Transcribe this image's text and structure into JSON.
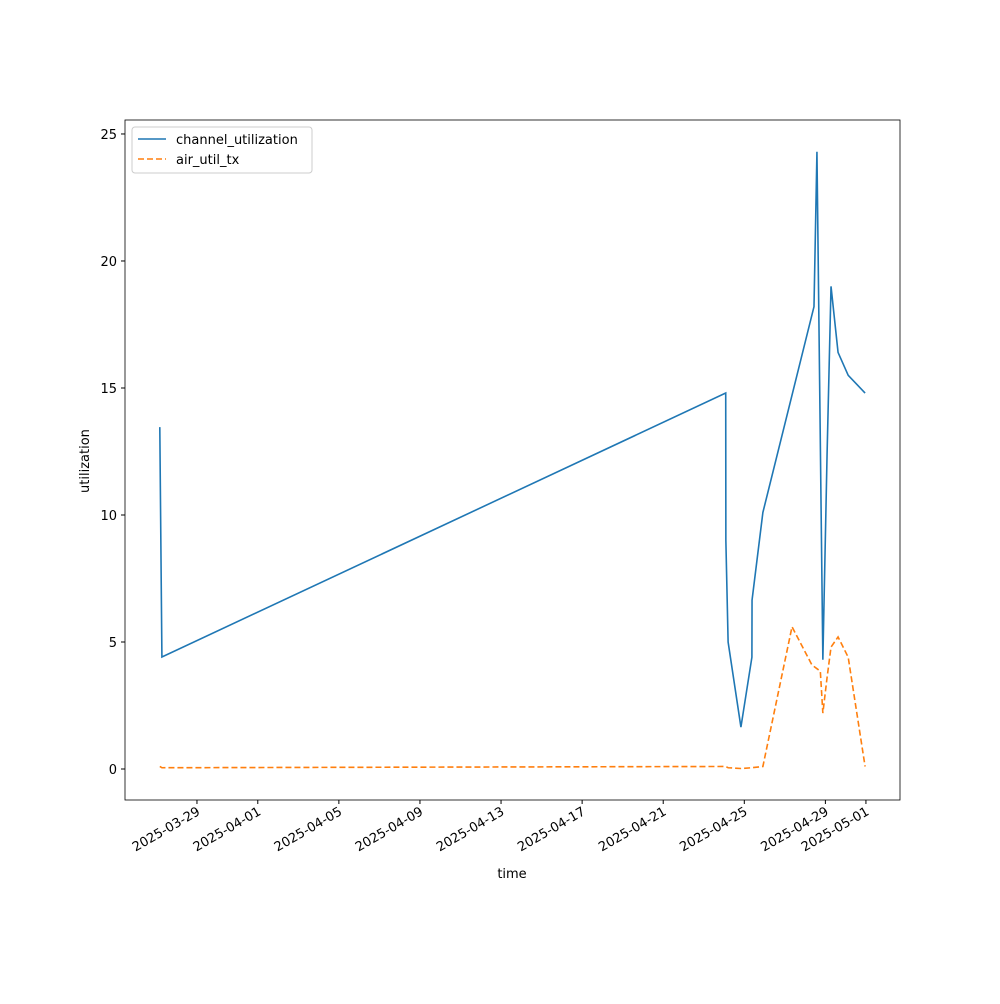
{
  "chart_data": {
    "type": "line",
    "xlabel": "time",
    "ylabel": "utilization",
    "xlim": [
      "2025-03-25T10:48",
      "2025-05-02T16:20"
    ],
    "ylim": [
      -1.22,
      25.55
    ],
    "xticks": [
      "2025-03-29",
      "2025-04-01",
      "2025-04-05",
      "2025-04-09",
      "2025-04-13",
      "2025-04-17",
      "2025-04-21",
      "2025-04-25",
      "2025-04-29",
      "2025-05-01"
    ],
    "yticks": [
      0,
      5,
      10,
      15,
      20,
      25
    ],
    "legend": "upper left",
    "series": [
      {
        "name": "channel_utilization",
        "color": "#1f77b4",
        "dash": "solid",
        "x": [
          "2025-03-27T04:00",
          "2025-03-27T06:30",
          "2025-04-24T02:00",
          "2025-04-24T02:10",
          "2025-04-24T04:50",
          "2025-04-24T20:00",
          "2025-04-25T09:00",
          "2025-04-25T09:10",
          "2025-04-25T22:00",
          "2025-04-28T10:30",
          "2025-04-28T14:00",
          "2025-04-28T21:00",
          "2025-04-29T02:00",
          "2025-04-29T06:40",
          "2025-04-29T15:00",
          "2025-04-30T03:00",
          "2025-04-30T23:00"
        ],
        "values": [
          13.46,
          4.41,
          14.8,
          9.0,
          5.0,
          1.65,
          4.4,
          6.65,
          10.1,
          18.2,
          24.3,
          4.3,
          12.4,
          19.0,
          16.4,
          15.5,
          14.8
        ]
      },
      {
        "name": "air_util_tx",
        "color": "#ff7f0e",
        "dash": "dashed",
        "x": [
          "2025-03-27T04:00",
          "2025-03-27T06:30",
          "2025-04-24T02:00",
          "2025-04-24T04:50",
          "2025-04-24T20:00",
          "2025-04-25T09:00",
          "2025-04-25T22:00",
          "2025-04-27T08:30",
          "2025-04-28T08:00",
          "2025-04-28T18:00",
          "2025-04-28T21:00",
          "2025-04-29T02:00",
          "2025-04-29T06:40",
          "2025-04-29T15:00",
          "2025-04-30T03:00",
          "2025-04-30T23:00"
        ],
        "values": [
          0.1,
          0.05,
          0.1,
          0.05,
          0.02,
          0.05,
          0.1,
          5.6,
          4.1,
          3.85,
          2.2,
          3.6,
          4.8,
          5.2,
          4.4,
          0.1
        ]
      }
    ]
  }
}
